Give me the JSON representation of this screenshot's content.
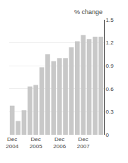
{
  "chart_data": {
    "type": "bar",
    "ylabel": "% change",
    "categories": [
      "Dec\n2004",
      null,
      null,
      null,
      "Dec\n2005",
      null,
      null,
      null,
      "Dec\n2006",
      null,
      null,
      null,
      "Dec\n2007",
      null,
      null,
      null
    ],
    "values": [
      0.38,
      0.18,
      0.32,
      0.63,
      0.65,
      0.88,
      1.05,
      0.96,
      1.0,
      1.0,
      1.14,
      1.22,
      1.3,
      1.25,
      1.28,
      1.28
    ],
    "color": "#c8c8c8",
    "ylim": [
      0,
      1.5
    ],
    "yticks": [
      0,
      0.3,
      0.6,
      0.9,
      1.2,
      1.5
    ],
    "grid": true
  }
}
